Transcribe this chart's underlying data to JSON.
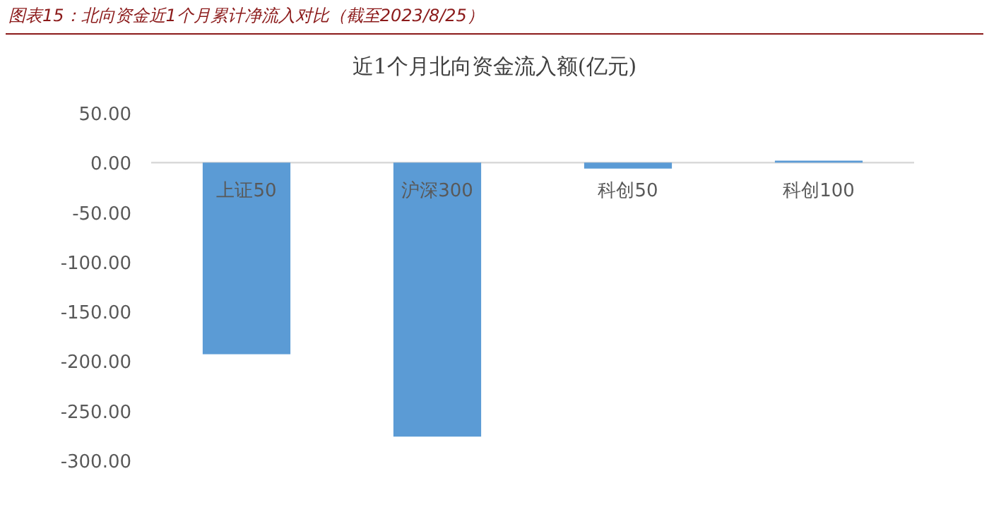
{
  "chart_data": {
    "type": "bar",
    "title": "图表15：北向资金近1个月累计净流入对比（截至2023/8/25）",
    "subtitle": "近1个月北向资金流入额(亿元)",
    "categories": [
      "上证50",
      "沪深300",
      "科创50",
      "科创100"
    ],
    "values": [
      -193,
      -276,
      -6,
      2
    ],
    "color": "#5b9bd5",
    "ylim": [
      -300,
      50
    ],
    "yticks": [
      {
        "value": 50,
        "label": "50.00"
      },
      {
        "value": 0,
        "label": "0.00"
      },
      {
        "value": -50,
        "label": "-50.00"
      },
      {
        "value": -100,
        "label": "-100.00"
      },
      {
        "value": -150,
        "label": "-150.00"
      },
      {
        "value": -200,
        "label": "-200.00"
      },
      {
        "value": -250,
        "label": "-250.00"
      },
      {
        "value": -300,
        "label": "-300.00"
      }
    ]
  }
}
